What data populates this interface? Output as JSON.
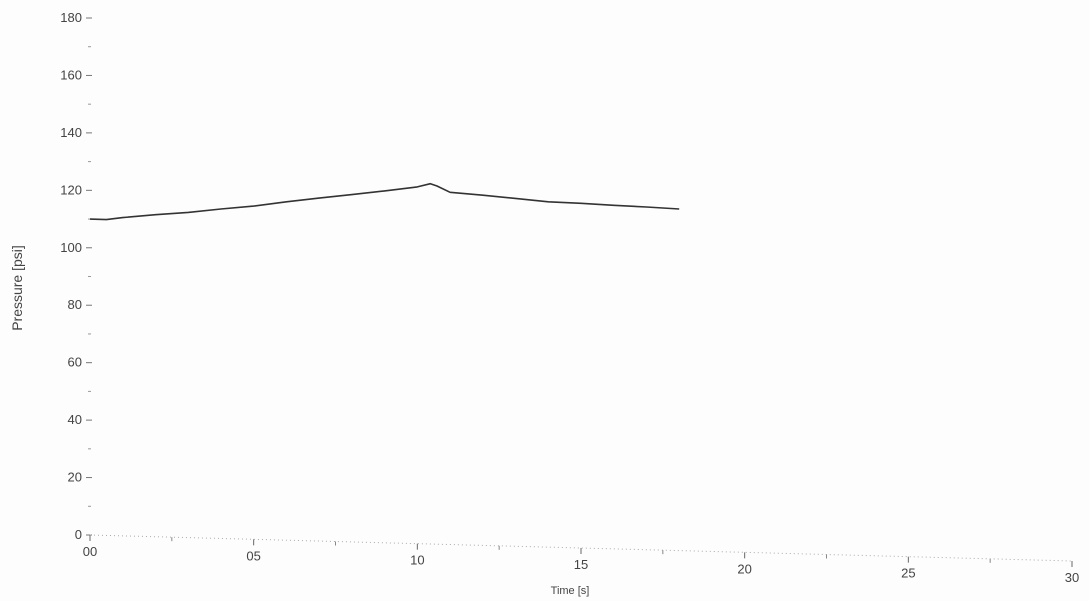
{
  "chart_data": {
    "type": "line",
    "title": "",
    "xlabel": "Time [s]",
    "ylabel": "Pressure [psi]",
    "xlim": [
      0,
      30
    ],
    "ylim": [
      0,
      180
    ],
    "x_ticks": [
      0,
      5,
      10,
      15,
      20,
      25,
      30
    ],
    "x_tick_labels": [
      "00",
      "05",
      "10",
      "15",
      "20",
      "25",
      "30"
    ],
    "y_ticks": [
      0,
      20,
      40,
      60,
      80,
      100,
      120,
      140,
      160,
      180
    ],
    "y_tick_labels": [
      "0",
      "20",
      "40",
      "60",
      "80",
      "100",
      "120",
      "140",
      "160",
      "180"
    ],
    "grid": false,
    "legend": "none",
    "line_color": "#333333",
    "x": [
      0,
      0.5,
      1.0,
      2.0,
      3.0,
      4.0,
      5.0,
      6.0,
      7.0,
      8.0,
      9.0,
      10.0,
      10.4,
      10.6,
      11.0,
      12.0,
      13.0,
      14.0,
      15.0,
      16.0,
      17.0,
      18.0
    ],
    "values": [
      110.0,
      109.8,
      110.5,
      111.5,
      112.3,
      113.5,
      114.5,
      116.0,
      117.3,
      118.5,
      119.8,
      121.2,
      122.3,
      121.5,
      119.3,
      118.3,
      117.2,
      116.0,
      115.5,
      114.8,
      114.2,
      113.5
    ]
  }
}
